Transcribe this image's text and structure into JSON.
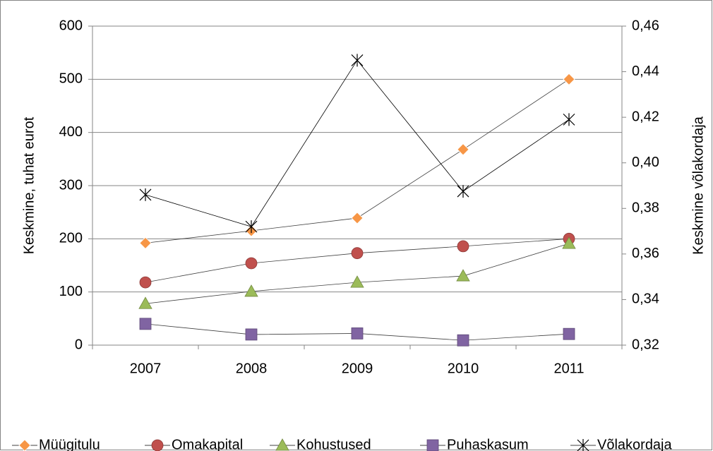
{
  "chart_data": {
    "type": "line",
    "y_label": "Keskmine, tuhat eurot",
    "y2_label": "Keskmine võlakordaja",
    "categories": [
      "2007",
      "2008",
      "2009",
      "2010",
      "2011"
    ],
    "series": [
      {
        "name": "Müügitulu",
        "color": "#F79646",
        "marker": "diamond",
        "values": [
          192,
          215,
          239,
          368,
          500
        ]
      },
      {
        "name": "Omakapital",
        "color": "#C0504D",
        "marker": "circle",
        "values": [
          118,
          154,
          173,
          186,
          200
        ]
      },
      {
        "name": "Kohustused",
        "color": "#9BBB59",
        "marker": "triangle",
        "values": [
          78,
          101,
          118,
          130,
          191
        ]
      },
      {
        "name": "Puhaskasum",
        "color": "#8064A2",
        "marker": "square",
        "values": [
          40,
          20,
          22,
          9,
          21
        ]
      },
      {
        "name": "Võlakordaja",
        "color": "#000000",
        "marker": "star",
        "axis": "y2",
        "values": [
          0.386,
          0.372,
          0.445,
          0.3875,
          0.419
        ]
      }
    ],
    "ylim": [
      0,
      600
    ],
    "yticks": [
      0,
      100,
      200,
      300,
      400,
      500,
      600
    ],
    "y2lim": [
      0.32,
      0.46
    ],
    "y2ticks": [
      {
        "value": 0.32,
        "label": "0,32"
      },
      {
        "value": 0.34,
        "label": "0,34"
      },
      {
        "value": 0.36,
        "label": "0,36"
      },
      {
        "value": 0.38,
        "label": "0,38"
      },
      {
        "value": 0.4,
        "label": "0,40"
      },
      {
        "value": 0.42,
        "label": "0,42"
      },
      {
        "value": 0.44,
        "label": "0,44"
      },
      {
        "value": 0.46,
        "label": "0,46"
      }
    ],
    "grid": true,
    "legend": "bottom"
  }
}
